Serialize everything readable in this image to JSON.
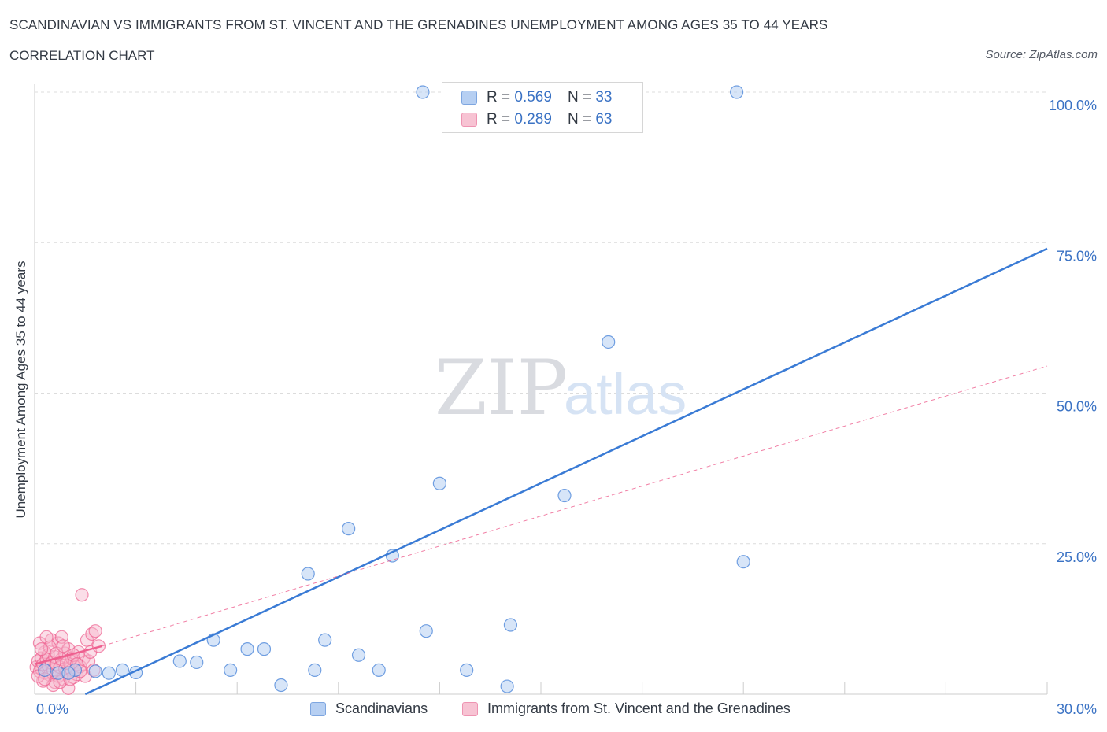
{
  "header": {
    "title": "SCANDINAVIAN VS IMMIGRANTS FROM ST. VINCENT AND THE GRENADINES UNEMPLOYMENT AMONG AGES 35 TO 44 YEARS",
    "subtitle": "CORRELATION CHART",
    "source": "Source: ZipAtlas.com"
  },
  "watermark": {
    "zip": "ZIP",
    "atlas": "atlas"
  },
  "legend": {
    "r_label": "R =",
    "n_label": "N =",
    "entries": [
      {
        "r": "0.569",
        "n": "33"
      },
      {
        "r": "0.289",
        "n": "63"
      }
    ]
  },
  "chart_data": {
    "type": "scatter",
    "title": "SCANDINAVIAN VS IMMIGRANTS FROM ST. VINCENT AND THE GRENADINES UNEMPLOYMENT AMONG AGES 35 TO 44 YEARS",
    "ylabel": "Unemployment Among Ages 35 to 44 years",
    "xlabel": "",
    "xlim": [
      0,
      30
    ],
    "ylim": [
      0,
      100
    ],
    "x_ticks_labels": [
      "0.0%",
      "30.0%"
    ],
    "y_ticks": [
      25,
      50,
      75,
      100
    ],
    "y_tick_labels": [
      "25.0%",
      "50.0%",
      "75.0%",
      "100.0%"
    ],
    "grid": true,
    "colors": {
      "blue": "#3a7bd5",
      "blue_fill": "#b6cff2",
      "pink": "#ee5f8f",
      "pink_fill": "#f7b6cb",
      "tick_text": "#3a72c4"
    },
    "series": [
      {
        "name": "Scandinavians",
        "color": "#3a7bd5",
        "points": [
          [
            0.3,
            4.0
          ],
          [
            0.7,
            3.5
          ],
          [
            1.2,
            4.0
          ],
          [
            1.8,
            3.8
          ],
          [
            2.2,
            3.5
          ],
          [
            2.6,
            4.0
          ],
          [
            3.0,
            3.6
          ],
          [
            4.3,
            5.5
          ],
          [
            4.8,
            5.3
          ],
          [
            5.3,
            9.0
          ],
          [
            5.8,
            4.0
          ],
          [
            6.3,
            7.5
          ],
          [
            6.8,
            7.5
          ],
          [
            7.3,
            1.5
          ],
          [
            8.1,
            20.0
          ],
          [
            8.3,
            4.0
          ],
          [
            8.6,
            9.0
          ],
          [
            9.3,
            27.5
          ],
          [
            9.6,
            6.5
          ],
          [
            10.2,
            4.0
          ],
          [
            10.6,
            23.0
          ],
          [
            11.6,
            10.5
          ],
          [
            12.0,
            35.0
          ],
          [
            12.8,
            4.0
          ],
          [
            14.1,
            11.5
          ],
          [
            14.0,
            1.3
          ],
          [
            15.7,
            33.0
          ],
          [
            17.0,
            58.5
          ],
          [
            21.0,
            22.0
          ],
          [
            11.5,
            100.0
          ],
          [
            15.3,
            100.0
          ],
          [
            20.8,
            100.0
          ],
          [
            1.0,
            3.5
          ]
        ]
      },
      {
        "name": "Immigrants from St. Vincent and the Grenadines",
        "color": "#ee5f8f",
        "points": [
          [
            0.05,
            4.5
          ],
          [
            0.1,
            5.5
          ],
          [
            0.15,
            3.8
          ],
          [
            0.2,
            6.0
          ],
          [
            0.2,
            4.2
          ],
          [
            0.25,
            5.0
          ],
          [
            0.3,
            7.0
          ],
          [
            0.3,
            3.5
          ],
          [
            0.35,
            5.8
          ],
          [
            0.4,
            4.8
          ],
          [
            0.4,
            6.5
          ],
          [
            0.45,
            3.2
          ],
          [
            0.5,
            5.2
          ],
          [
            0.5,
            9.0
          ],
          [
            0.55,
            4.0
          ],
          [
            0.6,
            6.2
          ],
          [
            0.6,
            2.0
          ],
          [
            0.65,
            5.0
          ],
          [
            0.7,
            8.5
          ],
          [
            0.7,
            3.0
          ],
          [
            0.75,
            4.5
          ],
          [
            0.8,
            9.5
          ],
          [
            0.8,
            5.8
          ],
          [
            0.85,
            2.5
          ],
          [
            0.9,
            4.2
          ],
          [
            0.9,
            6.8
          ],
          [
            0.95,
            3.6
          ],
          [
            1.0,
            7.5
          ],
          [
            1.0,
            1.0
          ],
          [
            1.05,
            5.0
          ],
          [
            1.1,
            4.0
          ],
          [
            1.1,
            6.0
          ],
          [
            1.15,
            2.8
          ],
          [
            1.2,
            5.5
          ],
          [
            1.25,
            3.3
          ],
          [
            1.3,
            7.0
          ],
          [
            1.35,
            4.6
          ],
          [
            1.4,
            16.5
          ],
          [
            1.45,
            6.0
          ],
          [
            1.5,
            3.0
          ],
          [
            1.55,
            9.0
          ],
          [
            1.6,
            5.5
          ],
          [
            1.65,
            7.0
          ],
          [
            1.7,
            10.0
          ],
          [
            1.75,
            4.0
          ],
          [
            1.8,
            10.5
          ],
          [
            1.9,
            8.0
          ],
          [
            0.15,
            8.5
          ],
          [
            0.25,
            2.2
          ],
          [
            0.35,
            9.5
          ],
          [
            0.45,
            7.8
          ],
          [
            0.55,
            1.5
          ],
          [
            0.65,
            6.8
          ],
          [
            0.75,
            2.0
          ],
          [
            0.85,
            8.0
          ],
          [
            0.95,
            5.2
          ],
          [
            1.05,
            2.5
          ],
          [
            1.15,
            6.5
          ],
          [
            1.25,
            5.0
          ],
          [
            1.35,
            3.8
          ],
          [
            0.1,
            3.0
          ],
          [
            0.2,
            7.5
          ],
          [
            0.3,
            2.5
          ]
        ]
      }
    ],
    "trendlines": [
      {
        "series": "Scandinavians",
        "from": [
          1.5,
          0.0
        ],
        "to": [
          30.0,
          74.0
        ]
      },
      {
        "series": "Immigrants from St. Vincent and the Grenadines",
        "segment_from": [
          0.0,
          5.0
        ],
        "segment_to": [
          2.0,
          8.0
        ],
        "dashed_to": [
          30.0,
          54.5
        ]
      }
    ]
  }
}
